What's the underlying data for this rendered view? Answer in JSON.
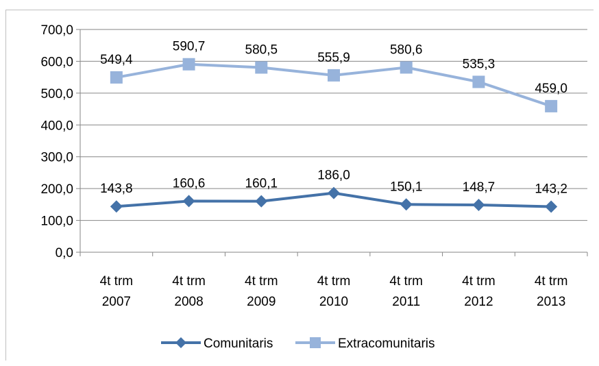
{
  "chart_data": {
    "type": "line",
    "title": "",
    "xlabel": "",
    "ylabel": "",
    "ylim": [
      0,
      700
    ],
    "yticks": [
      "0,0",
      "100,0",
      "200,0",
      "300,0",
      "400,0",
      "500,0",
      "600,0",
      "700,0"
    ],
    "ytick_values": [
      0,
      100,
      200,
      300,
      400,
      500,
      600,
      700
    ],
    "categories": [
      [
        "4t trm",
        "2007"
      ],
      [
        "4t trm",
        "2008"
      ],
      [
        "4t trm",
        "2009"
      ],
      [
        "4t trm",
        "2010"
      ],
      [
        "4t trm",
        "2011"
      ],
      [
        "4t trm",
        "2012"
      ],
      [
        "4t trm",
        "2013"
      ]
    ],
    "grid": true,
    "legend_position": "bottom",
    "series": [
      {
        "name": "Comunitaris",
        "color": "#4472a8",
        "marker": "diamond",
        "values": [
          143.8,
          160.6,
          160.1,
          186.0,
          150.1,
          148.7,
          143.2
        ],
        "labels": [
          "143,8",
          "160,6",
          "160,1",
          "186,0",
          "150,1",
          "148,7",
          "143,2"
        ]
      },
      {
        "name": "Extracomunitaris",
        "color": "#97b3db",
        "marker": "square",
        "values": [
          549.4,
          590.7,
          580.5,
          555.9,
          580.6,
          535.3,
          459.0
        ],
        "labels": [
          "549,4",
          "590,7",
          "580,5",
          "555,9",
          "580,6",
          "535,3",
          "459,0"
        ]
      }
    ]
  }
}
